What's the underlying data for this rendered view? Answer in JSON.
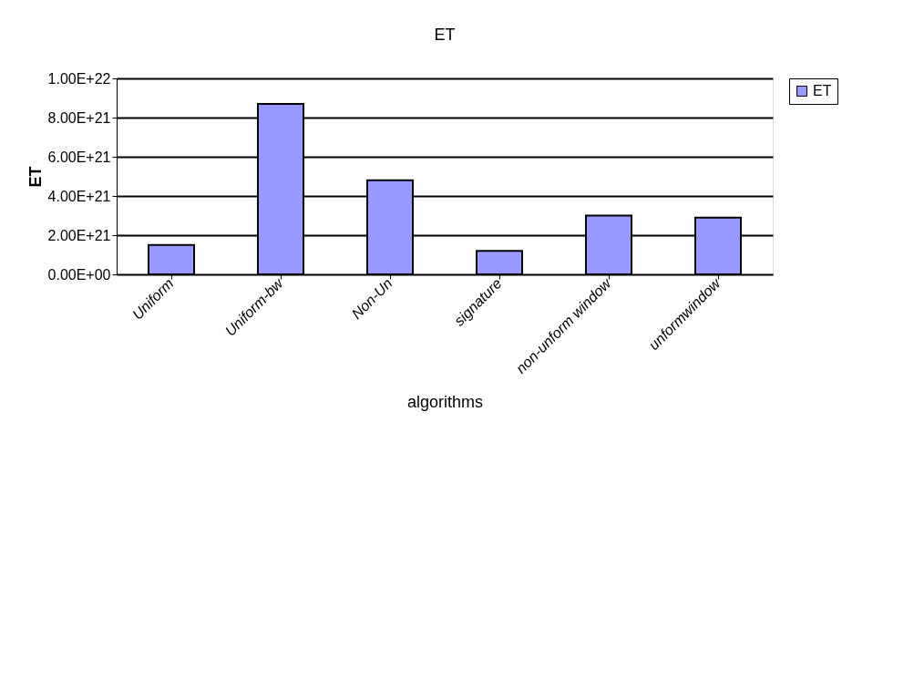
{
  "chart_data": {
    "type": "bar",
    "title": "ET",
    "xlabel": "algorithms",
    "ylabel": "ET",
    "categories": [
      "Uniform",
      "Uniform-bw",
      "Non-Un",
      "signature",
      "non-unform window",
      "unformwindow"
    ],
    "series": [
      {
        "name": "ET",
        "color": "#9999ff",
        "values": [
          1.5e+21,
          8.7e+21,
          4.8e+21,
          1.2e+21,
          3e+21,
          2.9e+21
        ]
      }
    ],
    "ylim": [
      0,
      1e+22
    ],
    "yticks": [
      {
        "value": 0,
        "label": "0.00E+00"
      },
      {
        "value": 2e+21,
        "label": "2.00E+21"
      },
      {
        "value": 4e+21,
        "label": "4.00E+21"
      },
      {
        "value": 6e+21,
        "label": "6.00E+21"
      },
      {
        "value": 8e+21,
        "label": "8.00E+21"
      },
      {
        "value": 1e+22,
        "label": "1.00E+22"
      }
    ],
    "grid": "y",
    "legend": "right"
  }
}
